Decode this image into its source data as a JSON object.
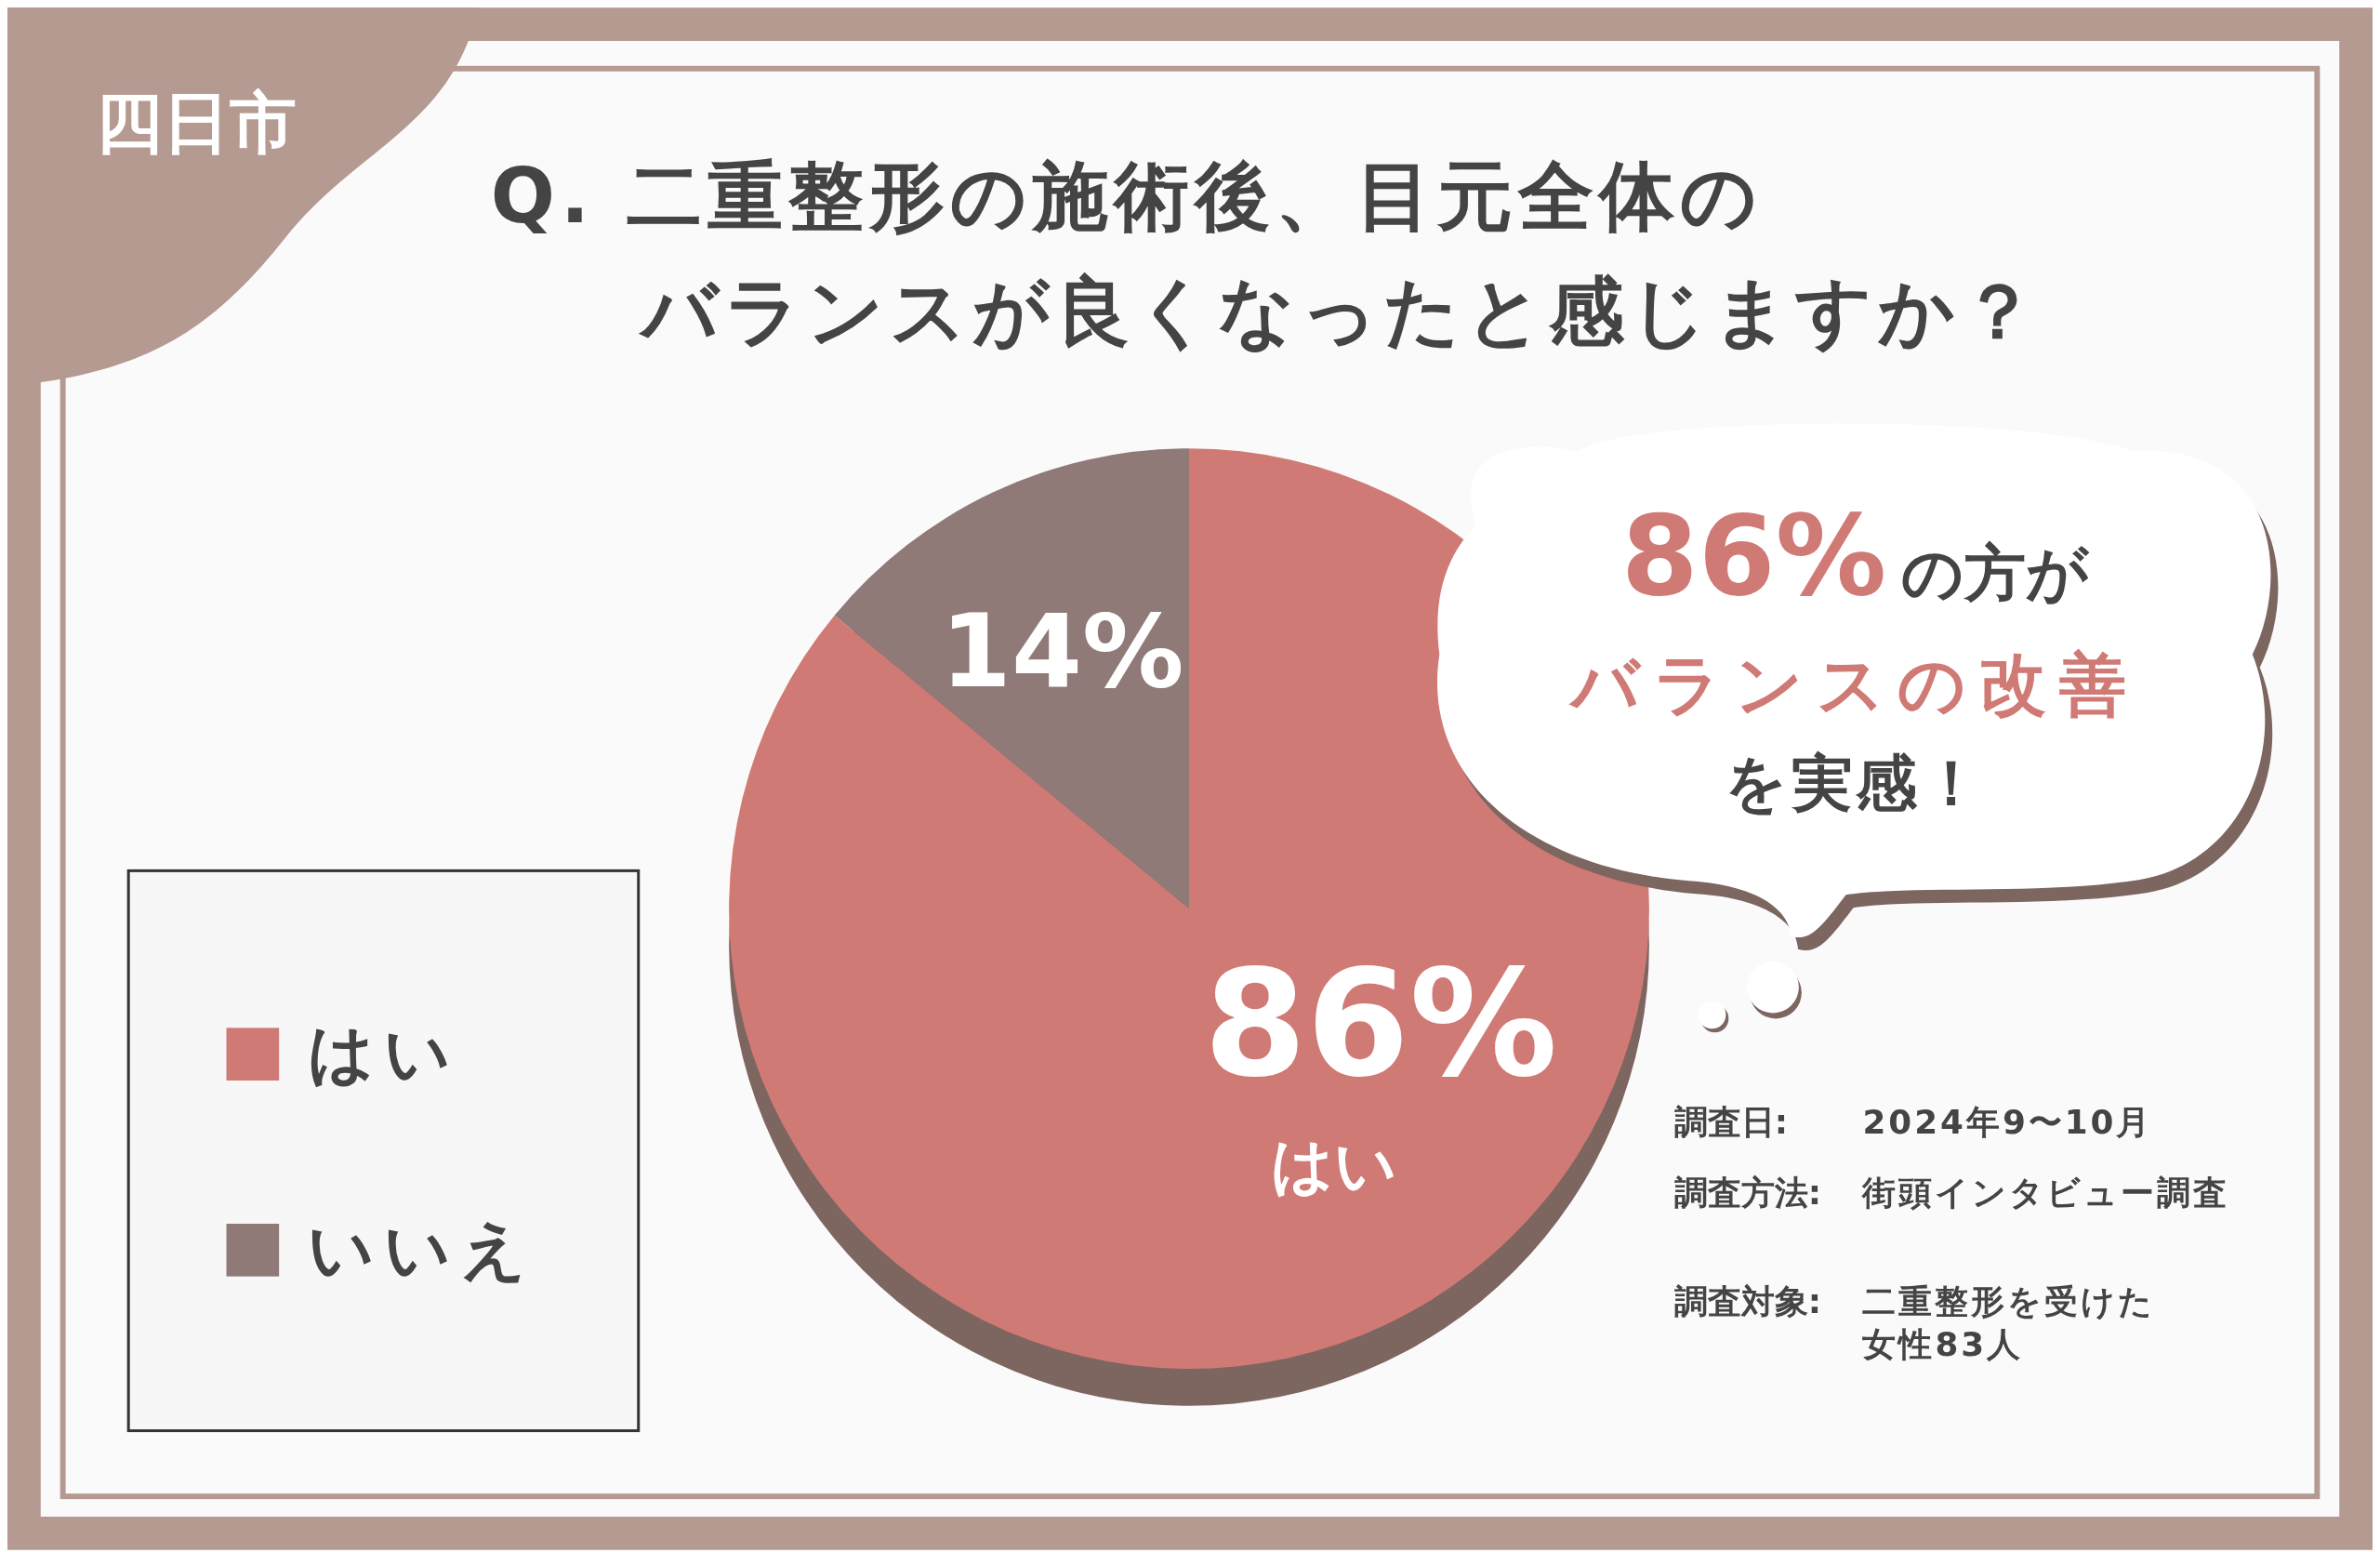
{
  "chart_data": {
    "type": "pie",
    "title": "Q. 二重整形の施術後、目元全体のバランスが良くなったと感じますか？",
    "categories": [
      "はい",
      "いいえ"
    ],
    "values": [
      86,
      14
    ],
    "colors": [
      "#d07a76",
      "#8f7a78"
    ],
    "value_labels": [
      "86%",
      "14%"
    ],
    "legend": "left",
    "annotations": [
      "四日市",
      "はい",
      "86%の方が",
      "バランスの改善",
      "を実感！",
      "調査日: 2024年9〜10月",
      "調査方法: 街頭インタビュー調査",
      "調査対象: 二重整形を受けた女性83人"
    ]
  }
}
